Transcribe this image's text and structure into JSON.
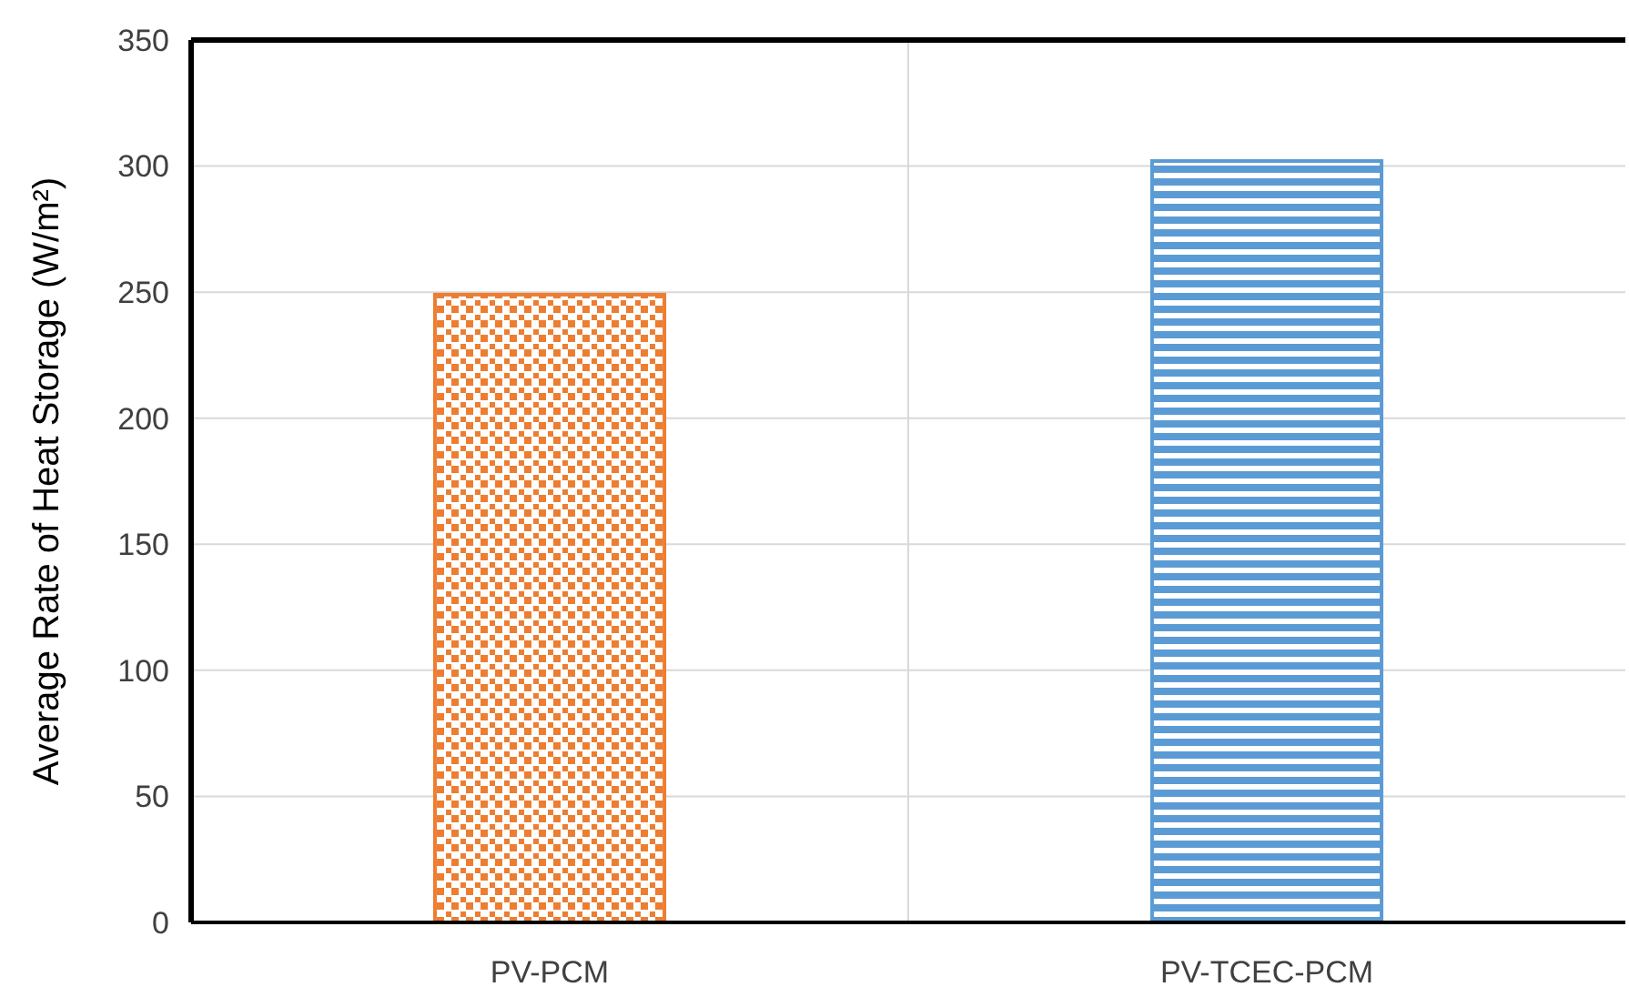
{
  "chart_data": {
    "type": "bar",
    "ylabel": "Average Rate of Heat Storage (W/m²)",
    "categories": [
      "PV-PCM",
      "PV-TCEC-PCM"
    ],
    "values": [
      249,
      302
    ],
    "colors": [
      "#ed7d31",
      "#5b9bd5"
    ],
    "ylim": [
      0,
      350
    ],
    "yticks": [
      0,
      50,
      100,
      150,
      200,
      250,
      300,
      350
    ],
    "grid": true
  }
}
